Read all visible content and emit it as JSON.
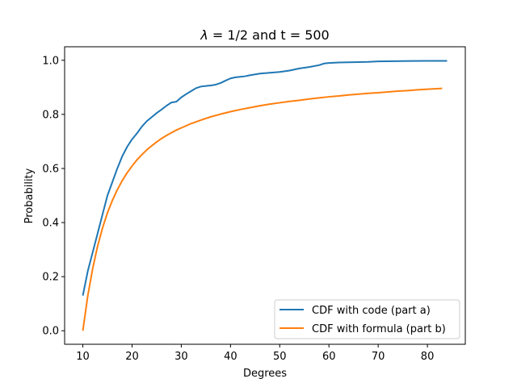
{
  "chart_data": {
    "type": "line",
    "title_symbol": "λ",
    "title_rest": " = 1/2 and t = 500",
    "xlabel": "Degrees",
    "ylabel": "Probability",
    "xlim": [
      6.3,
      87.7
    ],
    "ylim": [
      -0.05,
      1.05
    ],
    "xticks": [
      10,
      20,
      30,
      40,
      50,
      60,
      70,
      80
    ],
    "yticks": [
      0.0,
      0.2,
      0.4,
      0.6,
      0.8,
      1.0
    ],
    "xtick_labels": [
      "10",
      "20",
      "30",
      "40",
      "50",
      "60",
      "70",
      "80"
    ],
    "ytick_labels": [
      "0.0",
      "0.2",
      "0.4",
      "0.6",
      "0.8",
      "1.0"
    ],
    "grid": false,
    "legend_position": "lower-right",
    "series": [
      {
        "name": "CDF with code (part a)",
        "color": "#1f77b4",
        "x": [
          10,
          11,
          12,
          13,
          14,
          15,
          16,
          17,
          18,
          19,
          20,
          21,
          22,
          23,
          24,
          25,
          26,
          27,
          28,
          29,
          30,
          31,
          32,
          33,
          34,
          35,
          36,
          37,
          38,
          39,
          40,
          41,
          42,
          43,
          44,
          45,
          46,
          48,
          50,
          52,
          54,
          56,
          58,
          59,
          60,
          62,
          65,
          68,
          70,
          75,
          80,
          84
        ],
        "y": [
          0.13,
          0.22,
          0.29,
          0.36,
          0.43,
          0.5,
          0.55,
          0.6,
          0.645,
          0.68,
          0.708,
          0.73,
          0.755,
          0.775,
          0.79,
          0.805,
          0.818,
          0.832,
          0.844,
          0.847,
          0.863,
          0.875,
          0.886,
          0.897,
          0.903,
          0.905,
          0.907,
          0.91,
          0.916,
          0.925,
          0.933,
          0.937,
          0.939,
          0.941,
          0.945,
          0.948,
          0.951,
          0.954,
          0.957,
          0.962,
          0.97,
          0.975,
          0.982,
          0.988,
          0.99,
          0.992,
          0.993,
          0.994,
          0.996,
          0.997,
          0.998,
          0.998
        ]
      },
      {
        "name": "CDF with formula (part b)",
        "color": "#ff7f0e",
        "x": [
          10,
          11,
          12,
          13,
          14,
          15,
          16,
          17,
          18,
          19,
          20,
          21,
          22,
          23,
          24,
          25,
          26,
          27,
          28,
          29,
          30,
          32,
          34,
          36,
          38,
          40,
          42,
          44,
          46,
          48,
          50,
          52,
          54,
          56,
          58,
          60,
          62,
          64,
          66,
          68,
          70,
          72,
          74,
          76,
          78,
          80,
          82,
          83
        ],
        "y": [
          0.0,
          0.129,
          0.23,
          0.313,
          0.38,
          0.436,
          0.482,
          0.521,
          0.555,
          0.584,
          0.609,
          0.632,
          0.651,
          0.669,
          0.684,
          0.698,
          0.711,
          0.722,
          0.732,
          0.742,
          0.75,
          0.766,
          0.779,
          0.791,
          0.801,
          0.81,
          0.818,
          0.825,
          0.832,
          0.838,
          0.843,
          0.848,
          0.852,
          0.857,
          0.861,
          0.865,
          0.868,
          0.872,
          0.875,
          0.878,
          0.88,
          0.883,
          0.886,
          0.888,
          0.891,
          0.893,
          0.895,
          0.896
        ]
      }
    ]
  }
}
